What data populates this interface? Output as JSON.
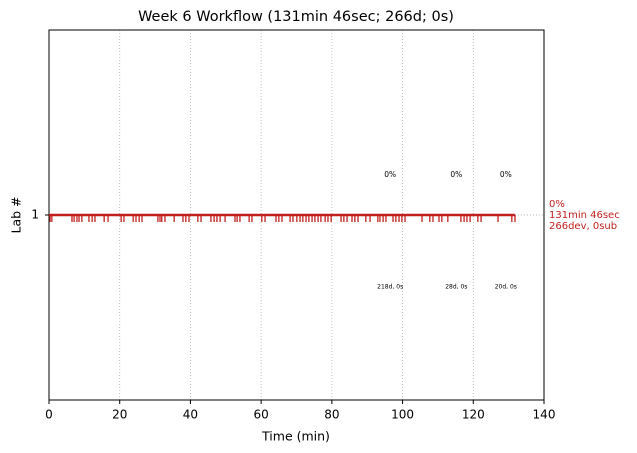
{
  "chart_data": {
    "type": "event-timeline",
    "title": "Week 6 Workflow (131min 46sec; 266d; 0s)",
    "x_label": "Time (min)",
    "y_label": "Lab #",
    "xlim": [
      0,
      140
    ],
    "xticks": [
      0,
      20,
      40,
      60,
      80,
      100,
      120,
      140
    ],
    "ylim": [
      0,
      2
    ],
    "yticks": [
      1
    ],
    "grid": true,
    "color": "#c0211f",
    "line_end": 131.77,
    "events": [
      0.3,
      0.8,
      6.5,
      7.1,
      7.9,
      8.5,
      9.3,
      11.3,
      12.2,
      13.0,
      15.6,
      16.7,
      20.4,
      21.2,
      23.8,
      24.6,
      25.5,
      26.3,
      30.8,
      31.4,
      31.9,
      32.8,
      35.4,
      37.9,
      38.7,
      39.6,
      42.1,
      43.0,
      45.8,
      46.7,
      47.5,
      48.4,
      49.8,
      52.6,
      53.2,
      54.0,
      56.6,
      57.4,
      60.2,
      61.1,
      64.2,
      65.0,
      65.9,
      68.2,
      69.0,
      70.1,
      71.0,
      71.8,
      72.7,
      73.5,
      74.4,
      75.2,
      76.1,
      76.9,
      78.1,
      78.9,
      79.8,
      82.6,
      83.4,
      84.3,
      85.7,
      86.5,
      87.4,
      89.6,
      90.8,
      93.0,
      93.6,
      94.5,
      95.3,
      97.3,
      98.1,
      99.0,
      99.8,
      100.7,
      105.5,
      107.7,
      108.6,
      110.3,
      111.1,
      112.8,
      116.5,
      117.4,
      118.2,
      119.1,
      121.3,
      122.2,
      127.0,
      130.9,
      131.8
    ],
    "segments": [
      {
        "x": 96.5,
        "percent": "0%",
        "label": "218d, 0s"
      },
      {
        "x": 115.2,
        "percent": "0%",
        "label": "28d, 0s"
      },
      {
        "x": 129.2,
        "percent": "0%",
        "label": "20d, 0s"
      }
    ],
    "summary": [
      "0%",
      "131min 46sec",
      "266dev, 0sub"
    ]
  }
}
